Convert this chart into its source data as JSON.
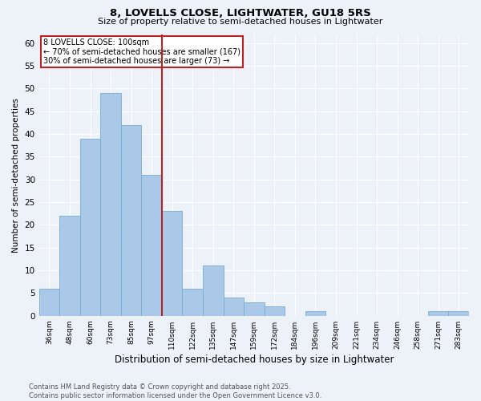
{
  "title1": "8, LOVELLS CLOSE, LIGHTWATER, GU18 5RS",
  "title2": "Size of property relative to semi-detached houses in Lightwater",
  "xlabel": "Distribution of semi-detached houses by size in Lightwater",
  "ylabel": "Number of semi-detached properties",
  "categories": [
    "36sqm",
    "48sqm",
    "60sqm",
    "73sqm",
    "85sqm",
    "97sqm",
    "110sqm",
    "122sqm",
    "135sqm",
    "147sqm",
    "159sqm",
    "172sqm",
    "184sqm",
    "196sqm",
    "209sqm",
    "221sqm",
    "234sqm",
    "246sqm",
    "258sqm",
    "271sqm",
    "283sqm"
  ],
  "values": [
    6,
    22,
    39,
    49,
    42,
    31,
    23,
    6,
    11,
    4,
    3,
    2,
    0,
    1,
    0,
    0,
    0,
    0,
    0,
    1,
    1
  ],
  "bar_color": "#aac9e8",
  "bar_edge_color": "#7aabcf",
  "marker_label": "8 LOVELLS CLOSE: 100sqm",
  "annotation_line1": "← 70% of semi-detached houses are smaller (167)",
  "annotation_line2": "30% of semi-detached houses are larger (73) →",
  "vline_color": "#bb2222",
  "annotation_box_edgecolor": "#bb2222",
  "vline_x": 5.5,
  "ylim": [
    0,
    62
  ],
  "yticks": [
    0,
    5,
    10,
    15,
    20,
    25,
    30,
    35,
    40,
    45,
    50,
    55,
    60
  ],
  "bg_color": "#edf1f8",
  "grid_color": "#ffffff",
  "footer": "Contains HM Land Registry data © Crown copyright and database right 2025.\nContains public sector information licensed under the Open Government Licence v3.0."
}
